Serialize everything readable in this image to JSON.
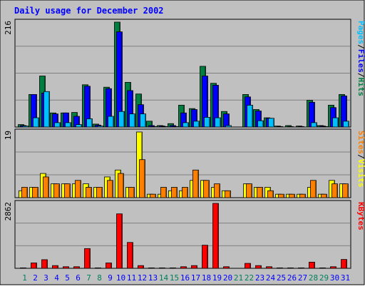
{
  "colors": {
    "background": "#c0c0c0",
    "border": "#000000",
    "grid": "#808080",
    "title": "#0000ff",
    "hits": "#008040",
    "files": "#0000ff",
    "pages": "#00c0ff",
    "visits": "#ff8000",
    "sites": "#ffff00",
    "kbytes": "#ff0000",
    "weekend_label": "#00805c",
    "weekday_label": "#0000ff"
  },
  "chart_data": {
    "type": "bar",
    "title": "Daily usage for December 2002",
    "categories": [
      "1",
      "2",
      "3",
      "4",
      "5",
      "6",
      "7",
      "8",
      "9",
      "10",
      "11",
      "12",
      "13",
      "14",
      "15",
      "16",
      "17",
      "18",
      "19",
      "20",
      "21",
      "22",
      "23",
      "24",
      "25",
      "26",
      "27",
      "28",
      "29",
      "30",
      "31"
    ],
    "weekend_days": [
      "1",
      "7",
      "8",
      "14",
      "15",
      "21",
      "22",
      "28",
      "29"
    ],
    "panels": [
      {
        "name": "hits_files_pages",
        "scale_max_label": "216",
        "ylim": [
          0,
          216
        ],
        "legend": [
          {
            "label": "Hits",
            "color_key": "hits"
          },
          {
            "label": "Files",
            "color_key": "files"
          },
          {
            "label": "Pages",
            "color_key": "pages"
          }
        ],
        "separator": "/",
        "series": [
          {
            "name": "Hits",
            "color_key": "hits",
            "values": [
              5,
              67,
              105,
              29,
              29,
              30,
              87,
              6,
              82,
              216,
              92,
              68,
              12,
              3,
              7,
              45,
              38,
              125,
              90,
              32,
              0,
              67,
              36,
              19,
              2,
              3,
              2,
              55,
              3,
              45,
              67
            ]
          },
          {
            "name": "Files",
            "color_key": "files",
            "values": [
              3,
              67,
              70,
              27,
              29,
              22,
              84,
              4,
              79,
              196,
              75,
              46,
              3,
              2,
              3,
              29,
              36,
              105,
              86,
              27,
              0,
              62,
              33,
              18,
              1,
              1,
              1,
              51,
              2,
              40,
              64
            ]
          },
          {
            "name": "Pages",
            "color_key": "pages",
            "values": [
              2,
              19,
              73,
              9,
              9,
              5,
              17,
              2,
              22,
              32,
              27,
              27,
              1,
              1,
              1,
              9,
              12,
              20,
              19,
              3,
              0,
              45,
              13,
              18,
              0,
              0,
              0,
              9,
              1,
              19,
              12
            ]
          }
        ]
      },
      {
        "name": "visits_sites",
        "scale_max_label": "19",
        "ylim": [
          0,
          19
        ],
        "legend": [
          {
            "label": "Visits",
            "color_key": "sites"
          },
          {
            "label": "Sites",
            "color_key": "visits"
          }
        ],
        "separator": "/",
        "series": [
          {
            "name": "Visits",
            "color_key": "sites",
            "values": [
              2,
              3,
              7,
              4,
              4,
              4,
              4,
              3,
              6,
              8,
              3,
              19,
              1,
              1,
              2,
              2,
              5,
              5,
              3,
              2,
              0,
              4,
              3,
              3,
              1,
              1,
              1,
              3,
              1,
              5,
              4
            ]
          },
          {
            "name": "Sites",
            "color_key": "visits",
            "values": [
              3,
              3,
              6,
              4,
              4,
              5,
              3,
              3,
              5,
              7,
              3,
              11,
              1,
              3,
              3,
              3,
              8,
              5,
              4,
              2,
              0,
              4,
              3,
              2,
              1,
              1,
              1,
              5,
              1,
              4,
              4
            ]
          }
        ]
      },
      {
        "name": "kbytes",
        "scale_max_label": "2862",
        "ylim": [
          0,
          2862
        ],
        "legend": [
          {
            "label": "KBytes",
            "color_key": "kbytes"
          }
        ],
        "separator": "",
        "series": [
          {
            "name": "KBytes",
            "color_key": "kbytes",
            "values": [
              20,
              237,
              380,
              120,
              70,
              70,
              870,
              20,
              236,
              2400,
              1140,
              120,
              20,
              20,
              20,
              70,
              120,
              1018,
              2862,
              70,
              0,
              218,
              120,
              70,
              20,
              20,
              20,
              272,
              20,
              70,
              390
            ]
          }
        ]
      }
    ]
  }
}
